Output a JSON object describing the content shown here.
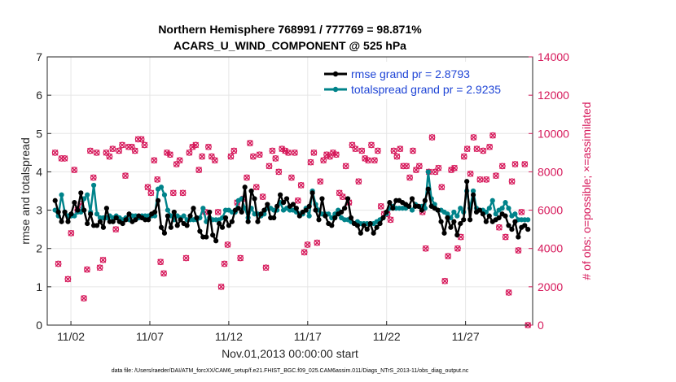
{
  "chart_data": {
    "type": "line",
    "title": "Northern Hemisphere 768991 / 777769 = 98.871%",
    "subtitle": "ACARS_U_WIND_COMPONENT @ 525 hPa",
    "xlabel": "Nov.01,2013 00:00:00 start",
    "ylabel": "rmse and totalspread",
    "y2label": "# of obs: o=possible; ×=assimilated",
    "footnote": "data file: /Users/raeder/DAI/ATM_forcXX/CAM6_setup/f.e21.FHIST_BGC.f09_025.CAM6assim.011/Diags_NTrS_2013-11/obs_diag_output.nc",
    "xlim": [
      0.5,
      31.25
    ],
    "ylim": [
      0,
      7
    ],
    "y2lim": [
      0,
      14000
    ],
    "x_ticks": [
      2,
      7,
      12,
      17,
      22,
      27
    ],
    "x_tick_labels": [
      "11/02",
      "11/07",
      "11/12",
      "11/17",
      "11/22",
      "11/27"
    ],
    "y_ticks": [
      0,
      1,
      2,
      3,
      4,
      5,
      6,
      7
    ],
    "y2_ticks": [
      0,
      2000,
      4000,
      6000,
      8000,
      10000,
      12000,
      14000
    ],
    "grid": true,
    "legend_position": "top-right",
    "colors": {
      "rmse": "#000000",
      "spread": "#00838a",
      "obs": "#d6185a",
      "legend_text": "#1f45d6"
    },
    "series": [
      {
        "name": "rmse grand pr = 2.8793",
        "axis": "left",
        "values": [
          3.25,
          2.95,
          2.7,
          2.95,
          2.7,
          2.9,
          3.2,
          3.0,
          3.45,
          3.0,
          2.65,
          2.9,
          2.6,
          2.6,
          2.7,
          2.55,
          3.05,
          2.7,
          2.7,
          2.8,
          2.7,
          2.65,
          2.75,
          2.9,
          2.7,
          2.75,
          2.85,
          2.8,
          2.75,
          2.75,
          2.9,
          2.95,
          3.25,
          2.55,
          2.4,
          2.85,
          2.55,
          2.95,
          2.6,
          2.75,
          2.65,
          2.6,
          2.85,
          3.05,
          2.8,
          2.45,
          2.3,
          2.3,
          2.95,
          2.35,
          2.2,
          2.65,
          2.55,
          2.8,
          2.6,
          2.7,
          3.0,
          3.05,
          2.95,
          3.6,
          2.7,
          3.5,
          3.3,
          2.7,
          2.9,
          3.0,
          3.15,
          2.8,
          2.8,
          3.1,
          3.4,
          3.2,
          3.3,
          3.1,
          3.15,
          3.05,
          2.85,
          2.95,
          3.0,
          3.1,
          3.45,
          3.0,
          2.75,
          3.3,
          2.85,
          2.65,
          2.6,
          2.8,
          2.9,
          2.95,
          3.05,
          3.3,
          2.8,
          2.65,
          2.6,
          2.4,
          2.6,
          2.5,
          2.65,
          2.4,
          2.55,
          2.65,
          2.8,
          2.95,
          3.2,
          3.05,
          3.25,
          3.25,
          3.2,
          3.15,
          3.1,
          3.3,
          3.1,
          3.1,
          3.0,
          3.25,
          3.55,
          3.1,
          3.05,
          3.0,
          2.7,
          2.4,
          2.8,
          2.55,
          2.7,
          2.35,
          2.65,
          2.75,
          3.75,
          2.75,
          3.4,
          2.95,
          3.0,
          2.9,
          2.7,
          2.85,
          2.7,
          2.75,
          2.8,
          2.9,
          2.85,
          2.6,
          2.5,
          2.7,
          2.3,
          2.55,
          2.6,
          2.5
        ]
      },
      {
        "name": "totalspread grand pr = 2.9235",
        "axis": "left",
        "values": [
          3.0,
          2.85,
          3.4,
          2.95,
          2.85,
          2.85,
          2.85,
          2.95,
          2.95,
          3.3,
          3.4,
          2.95,
          3.65,
          2.9,
          2.8,
          2.8,
          2.8,
          2.85,
          2.8,
          2.85,
          2.8,
          2.75,
          2.8,
          2.75,
          2.85,
          2.85,
          2.8,
          2.85,
          2.85,
          2.85,
          2.85,
          2.85,
          3.55,
          3.6,
          3.4,
          3.0,
          2.85,
          2.75,
          2.85,
          2.8,
          2.85,
          2.75,
          2.75,
          2.75,
          2.75,
          2.8,
          3.05,
          2.7,
          2.8,
          2.75,
          2.75,
          2.75,
          2.8,
          3.0,
          3.0,
          2.95,
          2.95,
          3.25,
          3.3,
          3.05,
          2.8,
          3.05,
          2.9,
          2.9,
          2.85,
          2.9,
          3.05,
          3.05,
          3.0,
          3.0,
          3.2,
          3.0,
          3.05,
          3.0,
          3.0,
          2.95,
          2.9,
          2.9,
          3.05,
          2.85,
          3.5,
          3.15,
          3.0,
          2.9,
          2.9,
          2.9,
          2.8,
          2.9,
          3.0,
          2.8,
          2.75,
          2.75,
          2.7,
          2.65,
          2.7,
          2.65,
          2.65,
          2.65,
          2.65,
          2.65,
          2.7,
          2.75,
          2.8,
          2.9,
          3.05,
          3.1,
          3.05,
          3.05,
          3.05,
          3.05,
          3.1,
          3.0,
          3.15,
          3.1,
          3.1,
          3.05,
          4.0,
          3.3,
          3.15,
          3.0,
          3.0,
          2.95,
          2.9,
          2.8,
          2.95,
          2.85,
          3.05,
          2.95,
          3.5,
          3.05,
          3.5,
          3.05,
          3.0,
          3.0,
          2.95,
          3.05,
          3.25,
          2.9,
          3.0,
          3.05,
          3.2,
          3.05,
          2.85,
          2.9,
          2.75,
          2.75,
          2.75,
          2.75
        ]
      }
    ],
    "obs_possible": [
      9000,
      3200,
      8700,
      8700,
      2400,
      4800,
      8100,
      6000,
      6300,
      1400,
      2900,
      9100,
      7700,
      9000,
      3000,
      3400,
      9000,
      8800,
      9200,
      5000,
      9100,
      9400,
      7800,
      9300,
      9300,
      9100,
      9700,
      9700,
      9400,
      7200,
      6900,
      8600,
      7600,
      3300,
      2700,
      9000,
      8900,
      6900,
      8400,
      8600,
      6900,
      3500,
      9000,
      9300,
      9400,
      8100,
      8800,
      5900,
      9300,
      8800,
      8600,
      5900,
      2000,
      3200,
      4200,
      8800,
      9100,
      6400,
      3500,
      6600,
      7700,
      9500,
      8800,
      7200,
      8900,
      6700,
      3000,
      8300,
      9100,
      8700,
      8000,
      9200,
      9100,
      9000,
      7700,
      9000,
      6500,
      7300,
      3800,
      4200,
      8500,
      9000,
      4300,
      7500,
      8600,
      8900,
      8800,
      9000,
      8900,
      6900,
      6700,
      8300,
      6400,
      9400,
      9200,
      7500,
      9100,
      8700,
      8600,
      9400,
      8600,
      9100,
      6200,
      5800,
      5800,
      5500,
      9100,
      8800,
      9200,
      8300,
      8300,
      7700,
      9100,
      8100,
      8300,
      5900,
      4000,
      8000,
      9800,
      8000,
      8200,
      7200,
      2300,
      3600,
      8100,
      8200,
      4000,
      4600,
      8800,
      9200,
      7900,
      9800,
      9200,
      7600,
      9100,
      7600,
      9300,
      9900,
      7800,
      5100,
      8300,
      4600,
      1700,
      7500,
      8400,
      3900,
      5900,
      8400,
      0
    ]
  }
}
